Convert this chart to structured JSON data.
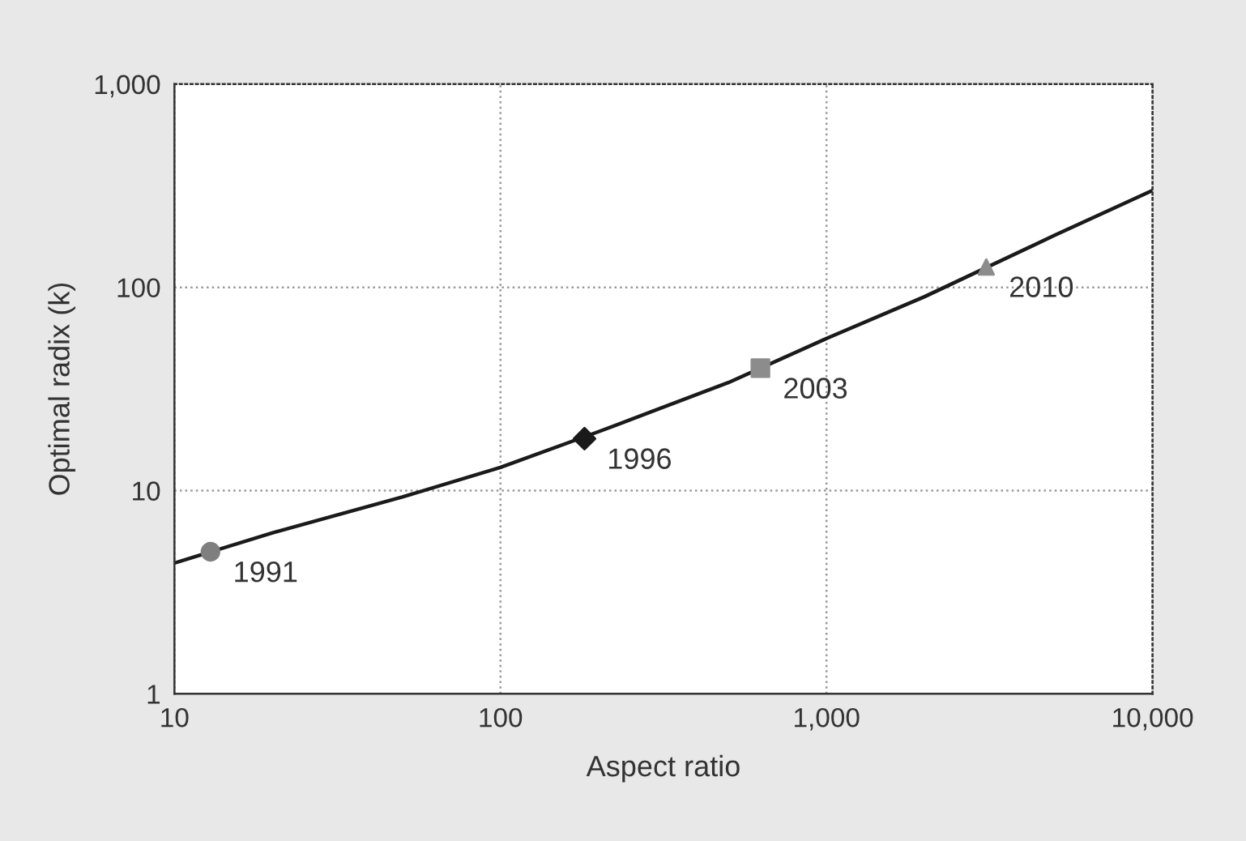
{
  "chart_data": {
    "type": "line",
    "xlabel": "Aspect ratio",
    "ylabel": "Optimal radix (k)",
    "log": "xy",
    "grid": true,
    "legend": false,
    "xlim": [
      10,
      10000
    ],
    "ylim": [
      1,
      1000
    ],
    "xticks": [
      10,
      100,
      {
        "value": 1000,
        "label": "1,000"
      },
      {
        "value": 10000,
        "label": "10,000"
      }
    ],
    "yticks": [
      1,
      10,
      100,
      {
        "value": 1000,
        "label": "1,000"
      }
    ],
    "series": [
      {
        "color": "#1a1a1a",
        "marker": "none",
        "x": [
          10,
          20,
          50,
          100,
          200,
          500,
          1000,
          2000,
          5000,
          10000
        ],
        "values": [
          4.4,
          6.2,
          9.3,
          13,
          19.5,
          34,
          56,
          90,
          180,
          300
        ]
      },
      {
        "type": "scatter",
        "color": "#7f7f7f",
        "marker": "circle",
        "x": [
          12.9
        ],
        "values": [
          5.0
        ]
      },
      {
        "type": "scatter",
        "color": "#1a1a1a",
        "marker": "diamond",
        "x": [
          181
        ],
        "values": [
          18
        ]
      },
      {
        "type": "scatter",
        "color": "#8c8c8c",
        "marker": "square",
        "x": [
          627
        ],
        "values": [
          40
        ]
      },
      {
        "type": "scatter",
        "color": "#8c8c8c",
        "marker": "triangle",
        "x": [
          3090
        ],
        "values": [
          126
        ]
      }
    ],
    "annotations": [
      {
        "text": "1991",
        "x": 12.9,
        "y": 5.0
      },
      {
        "text": "1996",
        "x": 181,
        "y": 18
      },
      {
        "text": "2003",
        "x": 627,
        "y": 40
      },
      {
        "text": "2010",
        "x": 3090,
        "y": 126
      }
    ]
  }
}
